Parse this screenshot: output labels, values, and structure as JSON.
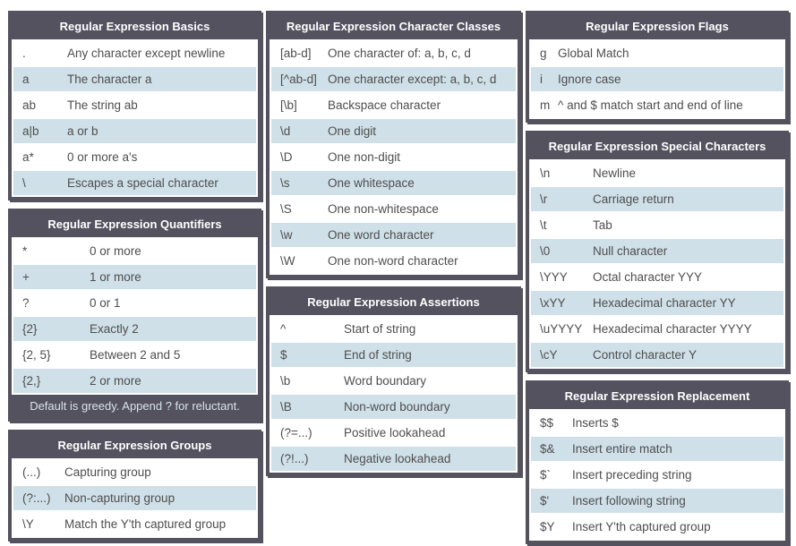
{
  "colors": {
    "header_bg": "#54525F",
    "header_text": "#FFFFFF",
    "row_bg": "#FFFFFF",
    "row_alt_bg": "#CFE0E8",
    "row_text": "#4E4E4E",
    "footer_text": "#D8E4EA"
  },
  "tables": [
    {
      "id": "basics",
      "column": 0,
      "title": "Regular Expression Basics",
      "rows": [
        [
          ".",
          "Any character except newline"
        ],
        [
          "a",
          "The character a"
        ],
        [
          "ab",
          "The string ab"
        ],
        [
          "a|b",
          "a or b"
        ],
        [
          "a*",
          "0 or more a's"
        ],
        [
          "\\",
          "Escapes a special character"
        ]
      ]
    },
    {
      "id": "quantifiers",
      "column": 0,
      "title": "Regular Expression Quantifiers",
      "rows": [
        [
          "*",
          "0 or more"
        ],
        [
          "+",
          "1 or more"
        ],
        [
          "?",
          "0 or 1"
        ],
        [
          "{2}",
          "Exactly 2"
        ],
        [
          "{2, 5}",
          "Between 2 and 5"
        ],
        [
          "{2,}",
          "2 or more"
        ]
      ],
      "footer": "Default is greedy. Append ? for reluctant."
    },
    {
      "id": "groups",
      "column": 0,
      "title": "Regular Expression Groups",
      "rows": [
        [
          "(...)",
          "Capturing group"
        ],
        [
          "(?:...)",
          "Non-capturing group"
        ],
        [
          "\\Y",
          "Match the Y'th captured group"
        ]
      ]
    },
    {
      "id": "character-classes",
      "column": 1,
      "title": "Regular Expression Character Classes",
      "rows": [
        [
          "[ab-d]",
          "One character of: a, b, c, d"
        ],
        [
          "[^ab-d]",
          "One character except: a, b, c, d"
        ],
        [
          "[\\b]",
          "Backspace character"
        ],
        [
          "\\d",
          "One digit"
        ],
        [
          "\\D",
          "One non-digit"
        ],
        [
          "\\s",
          "One whitespace"
        ],
        [
          "\\S",
          "One non-whitespace"
        ],
        [
          "\\w",
          "One word character"
        ],
        [
          "\\W",
          "One non-word character"
        ]
      ]
    },
    {
      "id": "assertions",
      "column": 1,
      "title": "Regular Expression Assertions",
      "rows": [
        [
          "^",
          "Start of string"
        ],
        [
          "$",
          "End of string"
        ],
        [
          "\\b",
          "Word boundary"
        ],
        [
          "\\B",
          "Non-word boundary"
        ],
        [
          "(?=...)",
          "Positive lookahead"
        ],
        [
          "(?!...)",
          "Negative lookahead"
        ]
      ]
    },
    {
      "id": "flags",
      "column": 2,
      "title": "Regular Expression Flags",
      "rows": [
        [
          "g",
          "Global Match"
        ],
        [
          "i",
          "Ignore case"
        ],
        [
          "m",
          "^ and $ match start and end of line"
        ]
      ]
    },
    {
      "id": "special-characters",
      "column": 2,
      "title": "Regular Expression Special Characters",
      "rows": [
        [
          "\\n",
          "Newline"
        ],
        [
          "\\r",
          "Carriage return"
        ],
        [
          "\\t",
          "Tab"
        ],
        [
          "\\0",
          "Null character"
        ],
        [
          "\\YYY",
          "Octal character YYY"
        ],
        [
          "\\xYY",
          "Hexadecimal character YY"
        ],
        [
          "\\uYYYY",
          "Hexadecimal character YYYY"
        ],
        [
          "\\cY",
          "Control character Y"
        ]
      ]
    },
    {
      "id": "replacement",
      "column": 2,
      "title": "Regular Expression Replacement",
      "rows": [
        [
          "$$",
          "Inserts $"
        ],
        [
          "$&",
          "Insert entire match"
        ],
        [
          "$`",
          "Insert preceding string"
        ],
        [
          "$'",
          "Insert following string"
        ],
        [
          "$Y",
          "Insert Y'th captured group"
        ]
      ]
    }
  ]
}
